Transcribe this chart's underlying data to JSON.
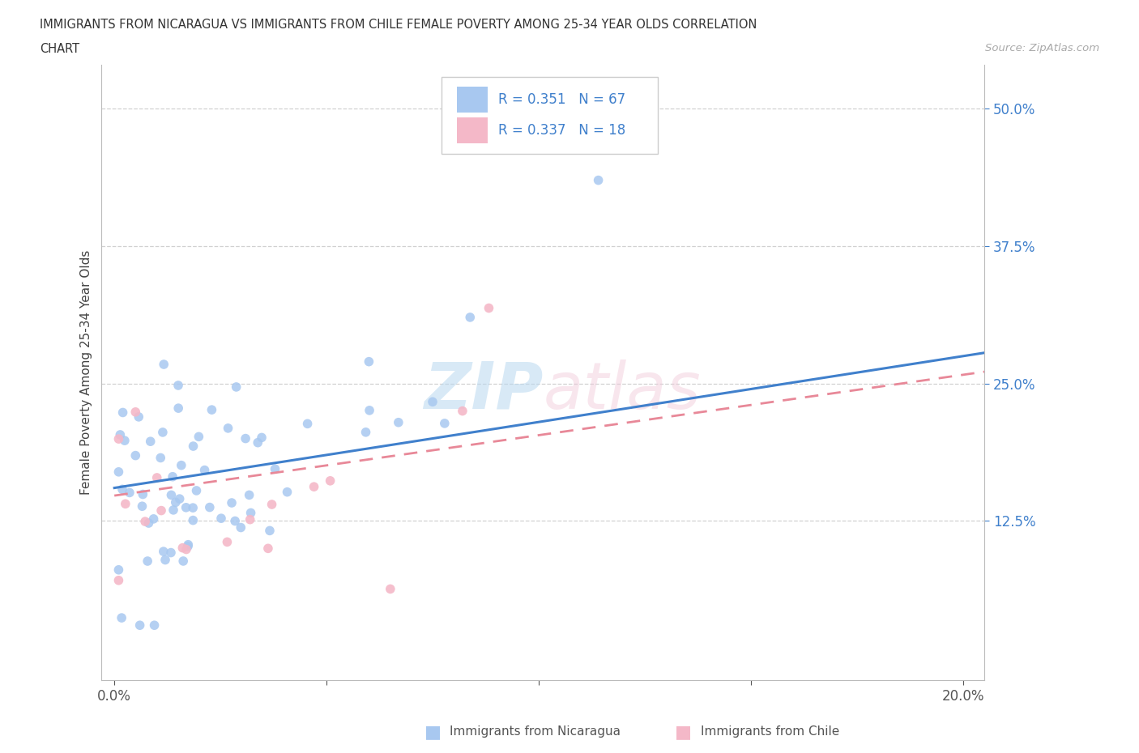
{
  "title_line1": "IMMIGRANTS FROM NICARAGUA VS IMMIGRANTS FROM CHILE FEMALE POVERTY AMONG 25-34 YEAR OLDS CORRELATION",
  "title_line2": "CHART",
  "source_text": "Source: ZipAtlas.com",
  "ylabel": "Female Poverty Among 25-34 Year Olds",
  "xlim": [
    -0.003,
    0.205
  ],
  "ylim": [
    -0.02,
    0.54
  ],
  "xtick_positions": [
    0.0,
    0.05,
    0.1,
    0.15,
    0.2
  ],
  "xtick_labels": [
    "0.0%",
    "",
    "",
    "",
    "20.0%"
  ],
  "ytick_positions": [
    0.125,
    0.25,
    0.375,
    0.5
  ],
  "ytick_labels": [
    "12.5%",
    "25.0%",
    "37.5%",
    "50.0%"
  ],
  "nicaragua_color": "#a8c8f0",
  "chile_color": "#f4b8c8",
  "nicaragua_line_color": "#4080cc",
  "chile_line_color": "#e88898",
  "tick_label_color": "#4080cc",
  "R_nicaragua": 0.351,
  "N_nicaragua": 67,
  "R_chile": 0.337,
  "N_chile": 18,
  "legend_label_nicaragua": "Immigrants from Nicaragua",
  "legend_label_chile": "Immigrants from Chile",
  "nic_intercept": 0.155,
  "nic_slope": 0.6,
  "chile_intercept": 0.148,
  "chile_slope": 0.55
}
